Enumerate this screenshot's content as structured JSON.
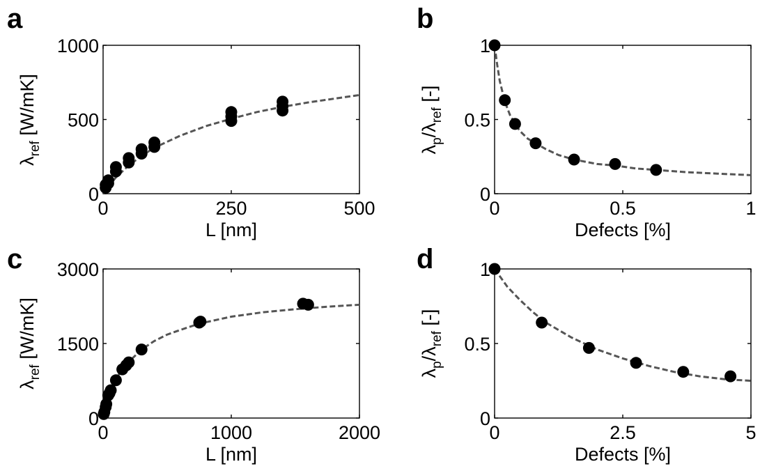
{
  "colors": {
    "marker": "#000000",
    "fit_line": "#555555",
    "axes": "#000000",
    "background": "#ffffff"
  },
  "chart_data": [
    {
      "panel": "a",
      "type": "scatter",
      "xlabel": "L [nm]",
      "ylabel": {
        "base": "λ",
        "sub": "ref",
        "rest": " [W/mK]"
      },
      "xlim": [
        0,
        500
      ],
      "ylim": [
        0,
        1000
      ],
      "xticks": [
        "0",
        "250",
        "500"
      ],
      "yticks": [
        "0",
        "500",
        "1000"
      ],
      "x_tick_values": [
        0,
        250,
        500
      ],
      "y_tick_values": [
        0,
        500,
        1000
      ],
      "series": [
        {
          "style": "markers",
          "x": [
            5,
            5,
            10,
            10,
            25,
            25,
            50,
            50,
            75,
            75,
            100,
            100,
            250,
            250,
            250,
            350,
            350,
            350
          ],
          "y": [
            40,
            60,
            70,
            90,
            150,
            180,
            210,
            240,
            270,
            300,
            315,
            345,
            490,
            520,
            550,
            560,
            590,
            620
          ]
        },
        {
          "style": "dashed-fit",
          "x": [
            0,
            10,
            25,
            50,
            75,
            100,
            150,
            200,
            250,
            300,
            350,
            400,
            450,
            500
          ],
          "y": [
            0,
            45,
            110,
            190,
            255,
            310,
            390,
            455,
            505,
            550,
            585,
            615,
            640,
            665
          ]
        }
      ]
    },
    {
      "panel": "b",
      "type": "scatter",
      "xlabel": "Defects [%]",
      "ylabel": {
        "base": "λ",
        "sub": "p",
        "mid": "/λ",
        "sub2": "ref",
        "rest": " [-]"
      },
      "xlim": [
        0,
        1
      ],
      "ylim": [
        0,
        1
      ],
      "xticks": [
        "0",
        "0.5",
        "1"
      ],
      "yticks": [
        "0",
        "0.5",
        "1"
      ],
      "x_tick_values": [
        0,
        0.5,
        1
      ],
      "y_tick_values": [
        0,
        0.5,
        1
      ],
      "series": [
        {
          "style": "markers",
          "x": [
            0,
            0.04,
            0.08,
            0.16,
            0.31,
            0.47,
            0.63
          ],
          "y": [
            1.0,
            0.63,
            0.47,
            0.34,
            0.23,
            0.2,
            0.16
          ]
        },
        {
          "style": "dashed-fit",
          "x": [
            0,
            0.01,
            0.02,
            0.04,
            0.06,
            0.08,
            0.1,
            0.13,
            0.16,
            0.2,
            0.25,
            0.31,
            0.4,
            0.47,
            0.55,
            0.63,
            0.75,
            0.87,
            1.0
          ],
          "y": [
            1.0,
            0.87,
            0.76,
            0.62,
            0.53,
            0.47,
            0.42,
            0.37,
            0.34,
            0.3,
            0.26,
            0.23,
            0.2,
            0.19,
            0.17,
            0.16,
            0.145,
            0.135,
            0.125
          ]
        }
      ]
    },
    {
      "panel": "c",
      "type": "scatter",
      "xlabel": "L [nm]",
      "ylabel": {
        "base": "λ",
        "sub": "ref",
        "rest": " [W/mK]"
      },
      "xlim": [
        0,
        2000
      ],
      "ylim": [
        0,
        3000
      ],
      "xticks": [
        "0",
        "1000",
        "2000"
      ],
      "yticks": [
        "0",
        "1500",
        "3000"
      ],
      "x_tick_values": [
        0,
        1000,
        2000
      ],
      "y_tick_values": [
        0,
        1500,
        3000
      ],
      "series": [
        {
          "style": "markers",
          "x": [
            5,
            10,
            20,
            25,
            40,
            50,
            60,
            100,
            150,
            180,
            200,
            300,
            750,
            760,
            1560,
            1600
          ],
          "y": [
            80,
            120,
            220,
            280,
            460,
            500,
            560,
            760,
            980,
            1060,
            1120,
            1380,
            1920,
            1940,
            2300,
            2280
          ]
        },
        {
          "style": "dashed-fit",
          "x": [
            0,
            25,
            50,
            100,
            150,
            200,
            300,
            400,
            500,
            600,
            750,
            1000,
            1250,
            1500,
            1750,
            2000
          ],
          "y": [
            0,
            280,
            500,
            780,
            990,
            1130,
            1380,
            1550,
            1680,
            1770,
            1900,
            2040,
            2130,
            2190,
            2240,
            2280
          ]
        }
      ]
    },
    {
      "panel": "d",
      "type": "scatter",
      "xlabel": "Defects [%]",
      "ylabel": {
        "base": "λ",
        "sub": "p",
        "mid": "/λ",
        "sub2": "ref",
        "rest": " [-]"
      },
      "xlim": [
        0,
        5
      ],
      "ylim": [
        0,
        1
      ],
      "xticks": [
        "0",
        "2.5",
        "5"
      ],
      "yticks": [
        "0",
        "0.5",
        "1"
      ],
      "x_tick_values": [
        0,
        2.5,
        5
      ],
      "y_tick_values": [
        0,
        0.5,
        1
      ],
      "series": [
        {
          "style": "markers",
          "x": [
            0,
            0.92,
            1.84,
            2.76,
            3.68,
            4.6
          ],
          "y": [
            1.0,
            0.64,
            0.47,
            0.37,
            0.31,
            0.28
          ]
        },
        {
          "style": "dashed-fit",
          "x": [
            0,
            0.25,
            0.5,
            0.75,
            1.0,
            1.5,
            2.0,
            2.5,
            3.0,
            3.5,
            4.0,
            4.5,
            5.0
          ],
          "y": [
            1.0,
            0.88,
            0.79,
            0.71,
            0.64,
            0.54,
            0.46,
            0.4,
            0.35,
            0.31,
            0.28,
            0.26,
            0.25
          ]
        }
      ]
    }
  ]
}
